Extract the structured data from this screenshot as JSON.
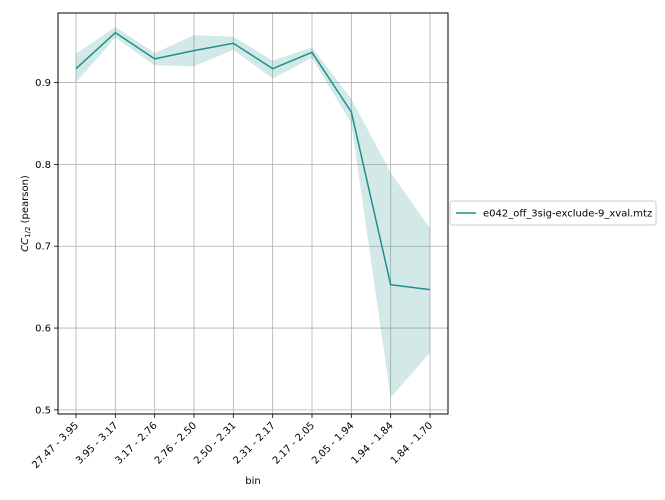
{
  "chart_data": {
    "type": "line",
    "title": "",
    "xlabel": "bin",
    "ylabel_main": "CC",
    "ylabel_sub": "1/2",
    "ylabel_rest": " (pearson)",
    "categories": [
      "27.47 - 3.95",
      "3.95 - 3.17",
      "3.17 - 2.76",
      "2.76 - 2.50",
      "2.50 - 2.31",
      "2.31 - 2.17",
      "2.17 - 2.05",
      "2.05 - 1.94",
      "1.94 - 1.84",
      "1.84 - 1.70"
    ],
    "ylim": [
      0.495,
      0.985
    ],
    "yticks": [
      0.5,
      0.6,
      0.7,
      0.8,
      0.9
    ],
    "ytick_labels": [
      "0.5",
      "0.6",
      "0.7",
      "0.8",
      "0.9"
    ],
    "grid": true,
    "legend_position": "right",
    "series": [
      {
        "name": "e042_off_3sig-exclude-9_xval.mtz",
        "color": "#1f8f8a",
        "values": [
          0.917,
          0.961,
          0.929,
          0.939,
          0.948,
          0.917,
          0.937,
          0.864,
          0.653,
          0.647
        ],
        "lower": [
          0.9,
          0.955,
          0.921,
          0.92,
          0.94,
          0.905,
          0.93,
          0.85,
          0.515,
          0.57
        ],
        "upper": [
          0.935,
          0.968,
          0.936,
          0.958,
          0.956,
          0.927,
          0.943,
          0.88,
          0.79,
          0.722
        ]
      }
    ]
  }
}
